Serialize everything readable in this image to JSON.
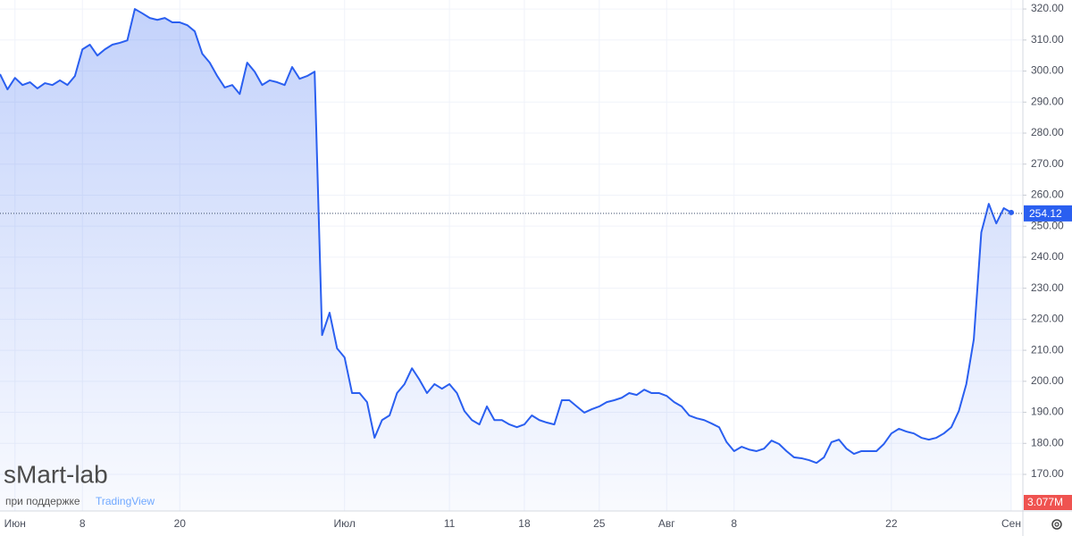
{
  "chart_data": {
    "type": "area",
    "color": "#2a5ff0",
    "categories": [
      null,
      null,
      "Июн",
      null,
      null,
      null,
      null,
      null,
      null,
      null,
      null,
      "8",
      null,
      null,
      null,
      null,
      null,
      null,
      null,
      null,
      null,
      null,
      null,
      null,
      "20",
      null,
      null,
      null,
      null,
      null,
      null,
      null,
      null,
      null,
      null,
      null,
      null,
      null,
      null,
      null,
      null,
      null,
      null,
      null,
      null,
      null,
      "Июл",
      null,
      null,
      null,
      null,
      null,
      null,
      null,
      null,
      null,
      null,
      null,
      null,
      null,
      "11",
      null,
      null,
      null,
      null,
      null,
      null,
      null,
      null,
      null,
      "18",
      null,
      null,
      null,
      null,
      null,
      null,
      null,
      null,
      null,
      "25",
      null,
      null,
      null,
      null,
      null,
      null,
      null,
      null,
      "Авг",
      null,
      null,
      null,
      null,
      null,
      null,
      null,
      null,
      "8",
      null,
      null,
      null,
      null,
      null,
      null,
      null,
      null,
      null,
      null,
      null,
      null,
      null,
      null,
      null,
      null,
      null,
      null,
      null,
      null,
      "22",
      null,
      null,
      null,
      null,
      null,
      null,
      null,
      null,
      null,
      null,
      null,
      null,
      null,
      null,
      null,
      "Сен"
    ],
    "values": [
      299.0,
      294.1,
      297.8,
      295.5,
      296.4,
      294.4,
      296.1,
      295.5,
      297.0,
      295.5,
      298.4,
      307.0,
      308.5,
      305.0,
      307.0,
      308.5,
      309.1,
      309.9,
      320.0,
      318.6,
      317.1,
      316.5,
      317.1,
      315.7,
      315.7,
      314.8,
      312.8,
      305.6,
      302.7,
      298.4,
      294.7,
      295.5,
      292.6,
      302.7,
      299.8,
      295.5,
      297.0,
      296.4,
      295.5,
      301.3,
      297.5,
      298.4,
      299.8,
      214.9,
      222.1,
      210.6,
      207.7,
      196.2,
      196.2,
      193.3,
      181.8,
      187.5,
      189.0,
      196.2,
      199.1,
      204.2,
      200.5,
      196.2,
      199.1,
      197.6,
      199.1,
      196.2,
      190.4,
      187.5,
      186.1,
      191.9,
      187.5,
      187.5,
      186.1,
      185.2,
      186.1,
      189.0,
      187.5,
      186.7,
      186.1,
      193.9,
      193.9,
      191.9,
      189.9,
      191.0,
      191.9,
      193.3,
      193.9,
      194.7,
      196.2,
      195.6,
      197.3,
      196.2,
      196.2,
      195.3,
      193.3,
      191.9,
      189.0,
      188.1,
      187.5,
      186.4,
      185.2,
      180.4,
      177.5,
      178.9,
      178.0,
      177.5,
      178.3,
      180.9,
      179.8,
      177.5,
      175.5,
      175.2,
      174.6,
      173.7,
      175.5,
      180.4,
      181.2,
      178.3,
      176.6,
      177.5,
      177.5,
      177.5,
      179.8,
      183.2,
      184.7,
      183.8,
      183.2,
      181.8,
      181.2,
      181.8,
      183.2,
      185.2,
      190.4,
      199.1,
      213.5,
      248.0,
      257.2,
      250.9,
      255.8,
      254.4
    ],
    "ylim": [
      158.2,
      322.9
    ],
    "yticks": [
      {
        "value": 170,
        "label": "170.00"
      },
      {
        "value": 180,
        "label": "180.00"
      },
      {
        "value": 190,
        "label": "190.00"
      },
      {
        "value": 200,
        "label": "200.00"
      },
      {
        "value": 210,
        "label": "210.00"
      },
      {
        "value": 220,
        "label": "220.00"
      },
      {
        "value": 230,
        "label": "230.00"
      },
      {
        "value": 240,
        "label": "240.00"
      },
      {
        "value": 250,
        "label": "250.00"
      },
      {
        "value": 260,
        "label": "260.00"
      },
      {
        "value": 270,
        "label": "270.00"
      },
      {
        "value": 280,
        "label": "280.00"
      },
      {
        "value": 290,
        "label": "290.00"
      },
      {
        "value": 300,
        "label": "300.00"
      },
      {
        "value": 310,
        "label": "310.00"
      },
      {
        "value": 320,
        "label": "320.00"
      }
    ],
    "grid": true,
    "last_value": 254.12,
    "volume_label": "3.077M",
    "watermark": "sMart-lab",
    "watermark_sub": "при поддержке",
    "watermark_brand": "TradingView"
  }
}
